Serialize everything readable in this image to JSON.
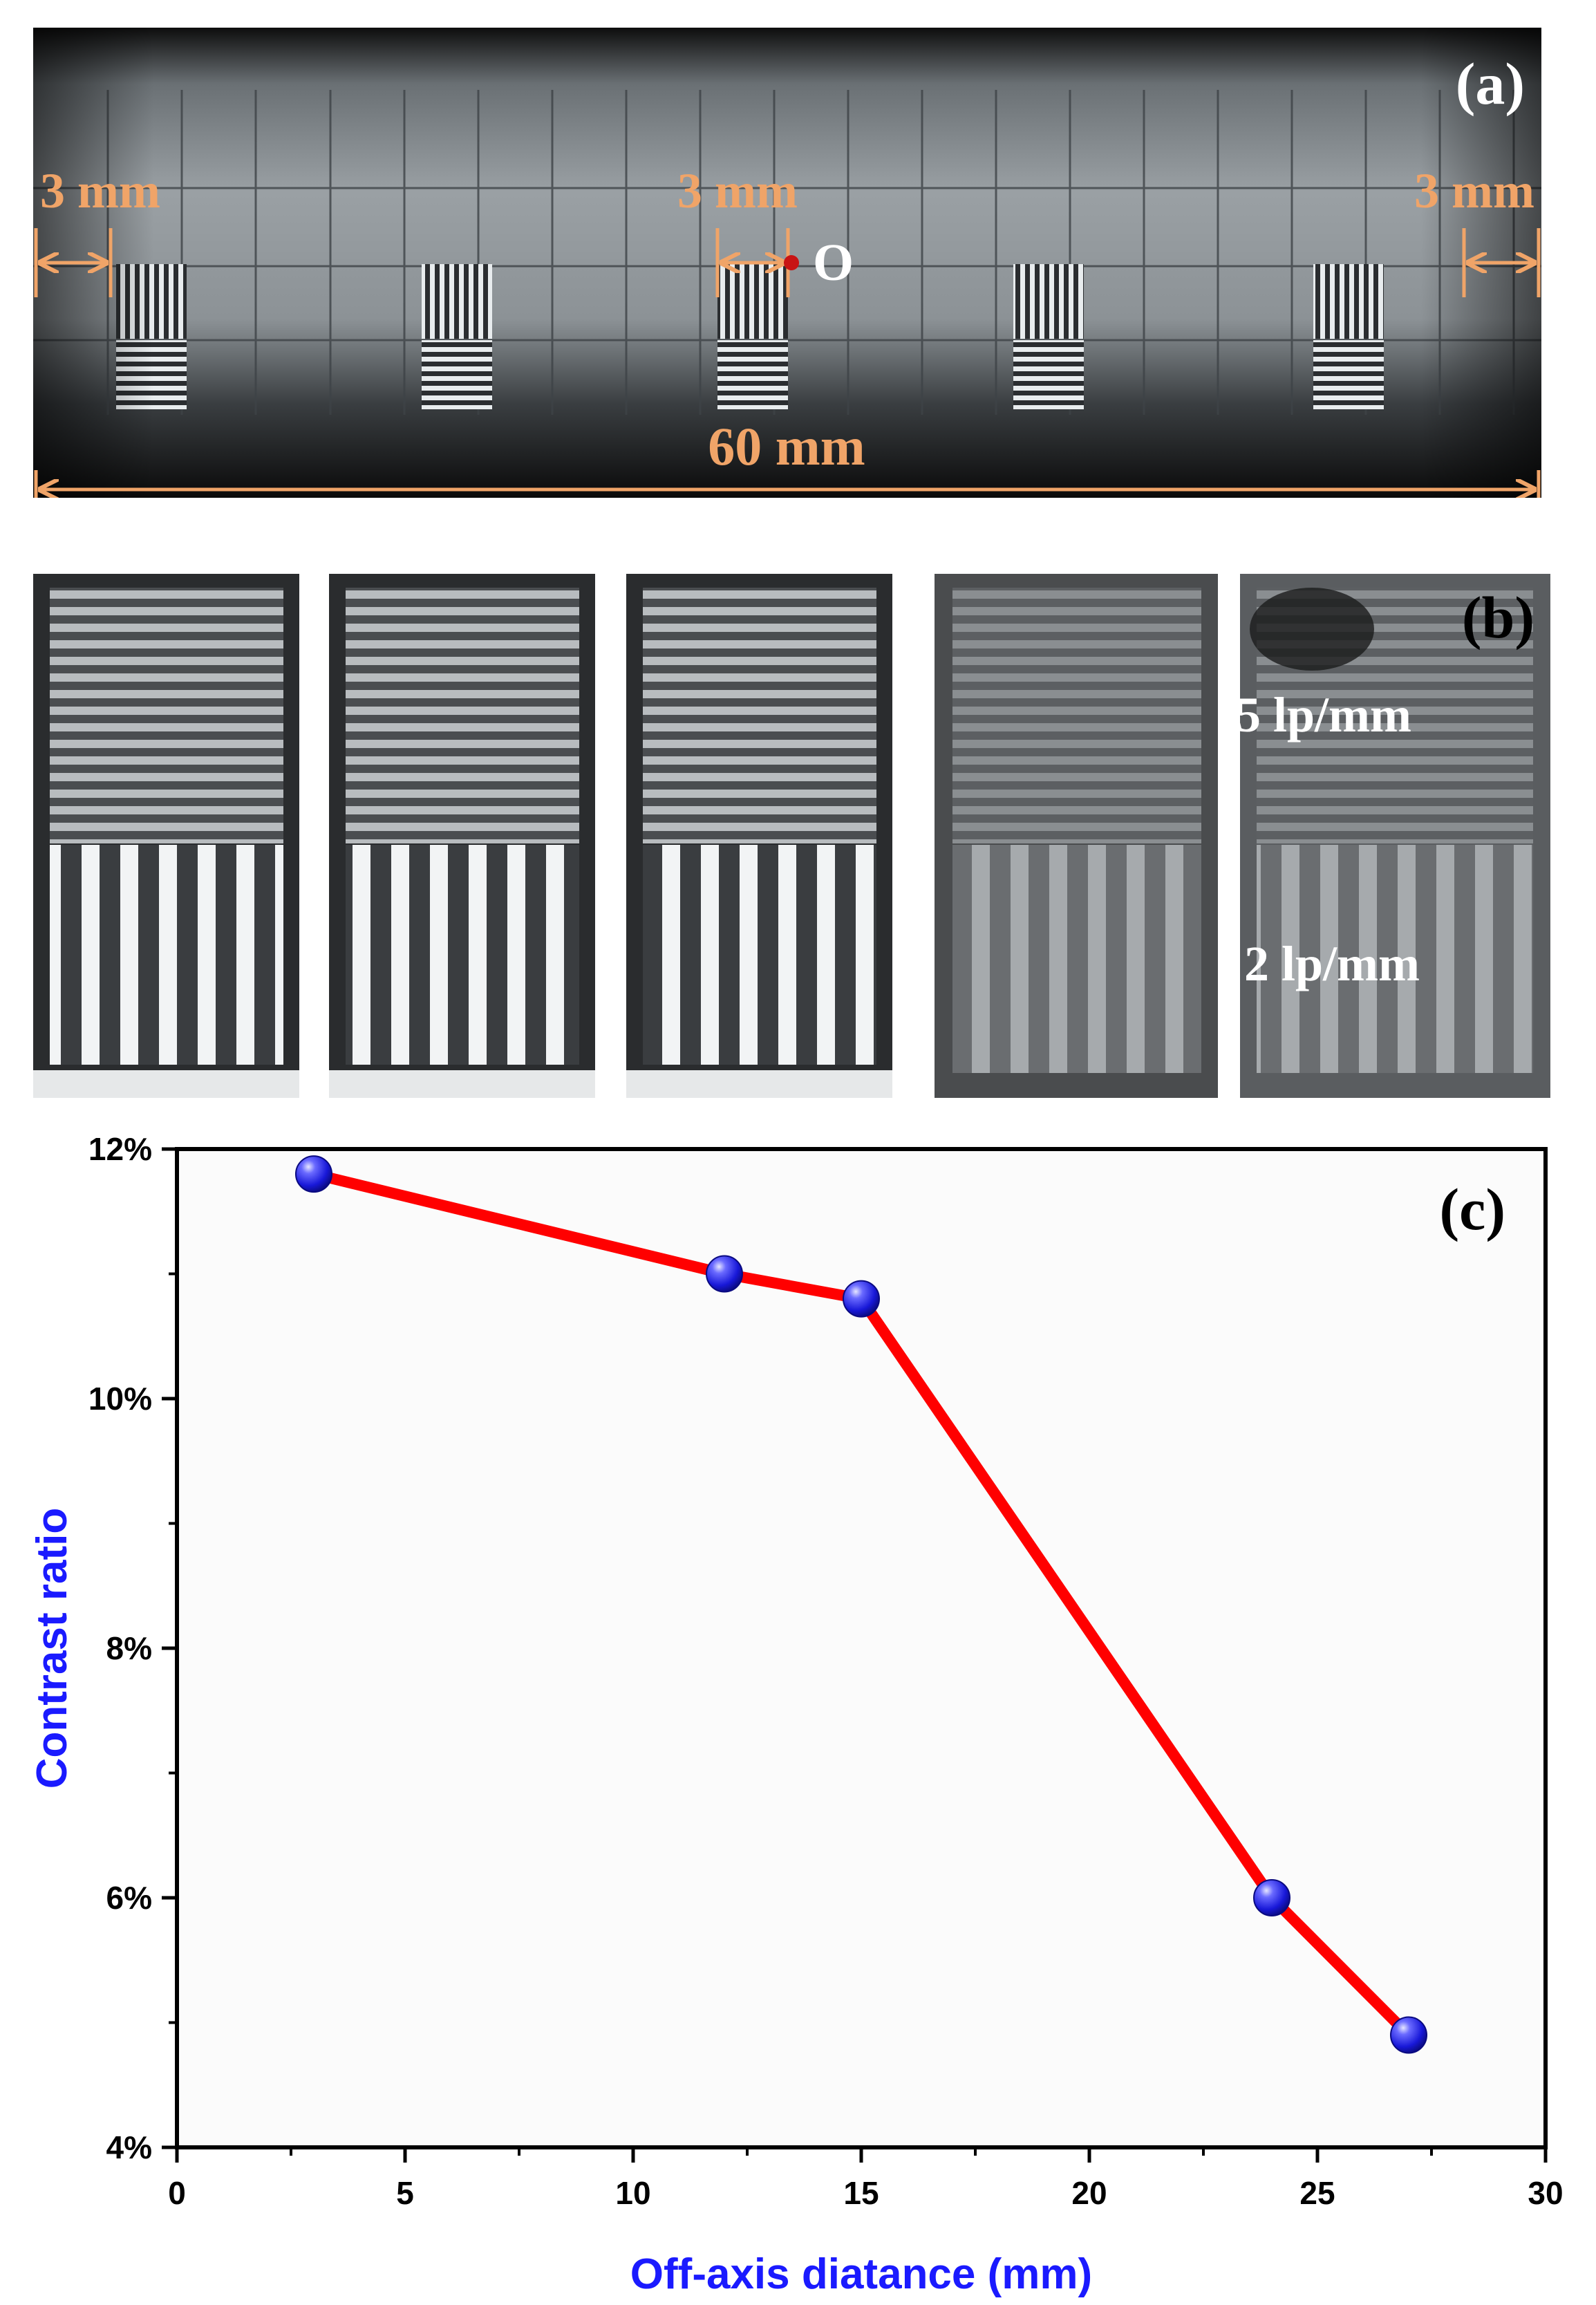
{
  "panel_a": {
    "label": "(a)",
    "dim_left": "3 mm",
    "dim_center": "3 mm",
    "dim_right": "3 mm",
    "origin_label": "O",
    "dim_total": "60 mm",
    "colors": {
      "annotation": "#f0a468",
      "origin_dot": "#c81414"
    }
  },
  "panel_b": {
    "label": "(b)",
    "freq_high": "5 lp/mm",
    "freq_low": "2 lp/mm"
  },
  "panel_c": {
    "label": "(c)"
  },
  "chart_data": {
    "type": "line",
    "title": "",
    "xlabel": "Off-axis diatance (mm)",
    "ylabel": "Contrast ratio",
    "xlim": [
      0,
      30
    ],
    "ylim": [
      4,
      12
    ],
    "x_ticks": [
      0,
      5,
      10,
      15,
      20,
      25,
      30
    ],
    "y_ticks": [
      4,
      6,
      8,
      10,
      12
    ],
    "y_tick_format": "%",
    "grid": false,
    "series": [
      {
        "x": [
          3,
          12,
          15,
          24,
          27
        ],
        "y": [
          11.8,
          11.0,
          10.8,
          6.0,
          4.9
        ],
        "line_color": "#ff0000",
        "marker_color": "#2a2af0"
      }
    ]
  }
}
